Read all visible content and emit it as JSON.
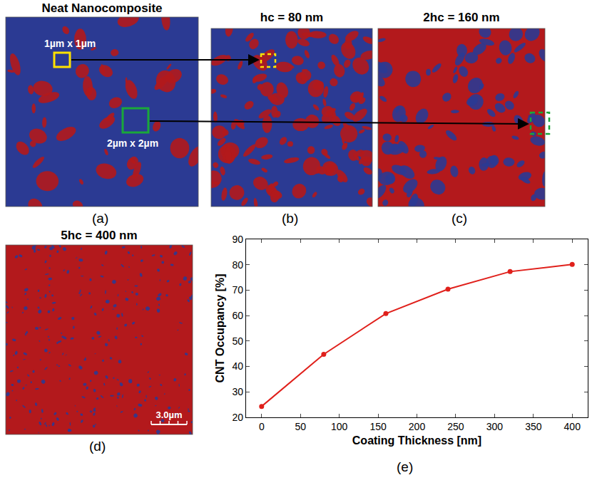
{
  "panels": [
    {
      "label": "(a)",
      "title": "Neat Nanocomposite",
      "boxes": [
        {
          "label": "1µm x 1µm"
        },
        {
          "label": "2µm x 2µm"
        }
      ]
    },
    {
      "label": "(b)",
      "title": "hc = 80 nm"
    },
    {
      "label": "(c)",
      "title": "2hc = 160 nm"
    },
    {
      "label": "(d)",
      "title": "5hc = 400 nm",
      "scale_bar": "3.0µm"
    }
  ],
  "chart_data": {
    "type": "line",
    "annotations": [
      "(e)"
    ],
    "x_label": "Coating Thickness [nm]",
    "y_label": "CNT Occupancy [%]",
    "x": [
      0,
      80,
      160,
      240,
      320,
      400
    ],
    "values": [
      24.3,
      44.8,
      60.8,
      70.4,
      77.3,
      80.1
    ],
    "color": "#e0201b",
    "marker": "circle",
    "xlim": [
      -20,
      420
    ],
    "xticks": [
      0,
      50,
      100,
      150,
      200,
      250,
      300,
      350,
      400
    ],
    "ylim": [
      20,
      90
    ],
    "yticks": [
      20,
      30,
      40,
      50,
      60,
      70,
      80,
      90
    ],
    "grid": false
  }
}
